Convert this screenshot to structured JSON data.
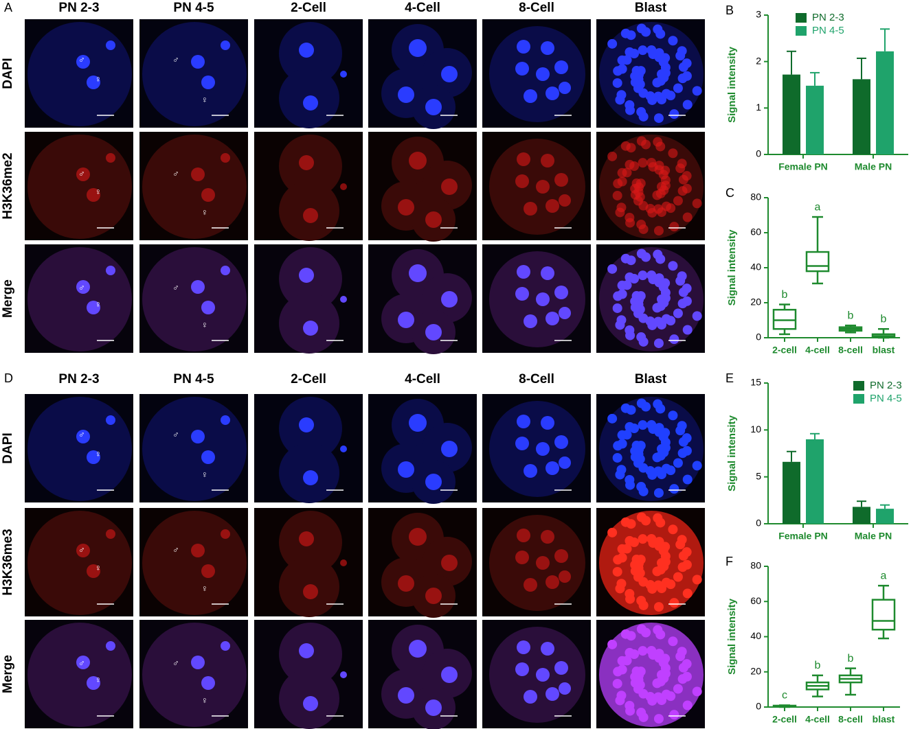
{
  "figure": {
    "top": {
      "panel_label": "A",
      "columns": [
        "PN 2-3",
        "PN 4-5",
        "2-Cell",
        "4-Cell",
        "8-Cell",
        "Blast"
      ],
      "rows": [
        "DAPI",
        "H3K36me2",
        "Merge"
      ]
    },
    "bottom": {
      "panel_label": "D",
      "columns": [
        "PN 2-3",
        "PN 4-5",
        "2-Cell",
        "4-Cell",
        "8-Cell",
        "Blast"
      ],
      "rows": [
        "DAPI",
        "H3K36me3",
        "Merge"
      ]
    },
    "symbols": {
      "male": "♂",
      "female": "♀"
    }
  },
  "chart_data": [
    {
      "type": "bar",
      "panel_label": "B",
      "y_label": "Signal intensity",
      "categories": [
        "Female PN",
        "Male PN"
      ],
      "series": [
        {
          "name": "PN 2-3",
          "color": "#0f6b2b",
          "values": [
            1.72,
            1.62
          ],
          "errors": [
            0.5,
            0.45
          ]
        },
        {
          "name": "PN 4-5",
          "color": "#1fa36b",
          "values": [
            1.48,
            2.22
          ],
          "errors": [
            0.28,
            0.48
          ]
        }
      ],
      "ylim": [
        0,
        3
      ],
      "yticks": [
        0,
        1,
        2,
        3
      ],
      "legend": "top-left"
    },
    {
      "type": "box",
      "panel_label": "C",
      "y_label": "Signal intensity",
      "categories": [
        "2-cell",
        "4-cell",
        "8-cell",
        "blast"
      ],
      "color": "#1e8a2e",
      "boxes": [
        {
          "min": 2,
          "q1": 5,
          "median": 10,
          "q3": 16,
          "max": 19
        },
        {
          "min": 31,
          "q1": 38,
          "median": 41,
          "q3": 49,
          "max": 69
        },
        {
          "min": 3,
          "q1": 4,
          "median": 5,
          "q3": 6,
          "max": 7
        },
        {
          "min": 0,
          "q1": 0.5,
          "median": 1,
          "q3": 2,
          "max": 5
        }
      ],
      "annotations": [
        "b",
        "a",
        "b",
        "b"
      ],
      "ylim": [
        0,
        80
      ],
      "yticks": [
        0,
        20,
        40,
        60,
        80
      ]
    },
    {
      "type": "bar",
      "panel_label": "E",
      "y_label": "Signal intensity",
      "categories": [
        "Female PN",
        "Male PN"
      ],
      "series": [
        {
          "name": "PN 2-3",
          "color": "#0f6b2b",
          "values": [
            6.6,
            1.8
          ],
          "errors": [
            1.1,
            0.6
          ]
        },
        {
          "name": "PN 4-5",
          "color": "#1fa36b",
          "values": [
            9.0,
            1.6
          ],
          "errors": [
            0.6,
            0.4
          ]
        }
      ],
      "ylim": [
        0,
        15
      ],
      "yticks": [
        0,
        5,
        10,
        15
      ],
      "legend": "top-right"
    },
    {
      "type": "box",
      "panel_label": "F",
      "y_label": "Signal intensity",
      "categories": [
        "2-cell",
        "4-cell",
        "8-cell",
        "blast"
      ],
      "color": "#1e8a2e",
      "boxes": [
        {
          "min": 0,
          "q1": 0.3,
          "median": 0.5,
          "q3": 0.8,
          "max": 1
        },
        {
          "min": 6,
          "q1": 10,
          "median": 12,
          "q3": 14,
          "max": 18
        },
        {
          "min": 7,
          "q1": 14,
          "median": 16,
          "q3": 18,
          "max": 22
        },
        {
          "min": 39,
          "q1": 44,
          "median": 49,
          "q3": 61,
          "max": 69
        }
      ],
      "annotations": [
        "c",
        "b",
        "b",
        "a"
      ],
      "ylim": [
        0,
        80
      ],
      "yticks": [
        0,
        20,
        40,
        60,
        80
      ]
    }
  ]
}
